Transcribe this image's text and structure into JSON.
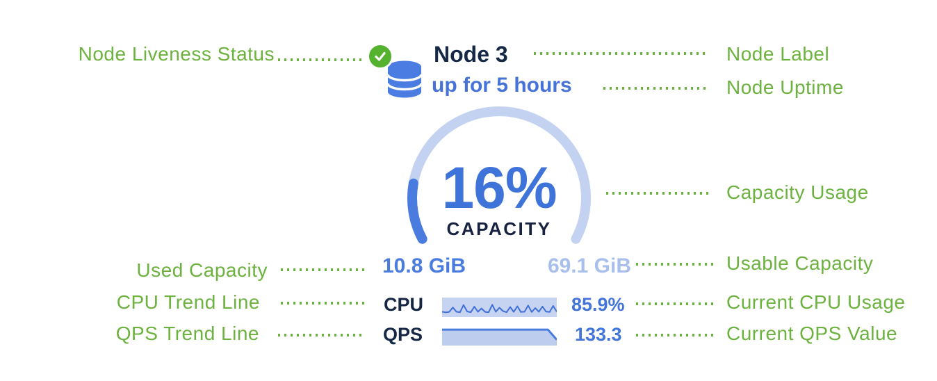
{
  "colors": {
    "annotation_green": "#6cb23e",
    "liveness_green": "#54b22f",
    "navy": "#152947",
    "blue": "#4274d9",
    "light_blue": "#a8bfec",
    "gauge_track": "#c3d2f0",
    "gauge_fill": "#4a7ce0",
    "spark_bg": "#c6d4f1",
    "db_icon_blue": "#4a7ce2"
  },
  "annotations": {
    "left": [
      {
        "label": "Node Liveness Status"
      },
      {
        "label": "Used Capacity"
      },
      {
        "label": "CPU Trend Line"
      },
      {
        "label": "QPS Trend Line"
      }
    ],
    "right": [
      {
        "label": "Node Label"
      },
      {
        "label": "Node Uptime"
      },
      {
        "label": "Capacity Usage"
      },
      {
        "label": "Usable Capacity"
      },
      {
        "label": "Current CPU Usage"
      },
      {
        "label": "Current QPS Value"
      }
    ]
  },
  "node": {
    "label": "Node 3",
    "uptime": "up for 5 hours",
    "capacity_percent_display": "16%",
    "capacity_caption": "CAPACITY",
    "used_capacity": "10.8 GiB",
    "usable_capacity": "69.1 GiB",
    "cpu_label": "CPU",
    "cpu_value": "85.9%",
    "qps_label": "QPS",
    "qps_value": "133.3"
  },
  "chart_data": [
    {
      "type": "gauge",
      "title": "CAPACITY",
      "value_pct": 16,
      "display": "16%",
      "used": "10.8 GiB",
      "usable": "69.1 GiB",
      "arc_degrees": 236,
      "track_color": "#c3d2f0",
      "fill_color": "#4a7ce0"
    },
    {
      "type": "line",
      "name": "CPU sparkline",
      "current": 85.9,
      "unit": "%",
      "ylim": [
        0,
        100
      ],
      "values": [
        30,
        26,
        29,
        58,
        30,
        27,
        74,
        32,
        27,
        63,
        30,
        52,
        29,
        27,
        76,
        30,
        57,
        34,
        27,
        61,
        29,
        66,
        28,
        30,
        71,
        28,
        54,
        30,
        64,
        31,
        28,
        68,
        30
      ]
    },
    {
      "type": "area",
      "name": "QPS sparkline",
      "current": 133.3,
      "ylim": [
        0,
        140
      ],
      "values": [
        133,
        133,
        133,
        133,
        133,
        133,
        133,
        133,
        133,
        133,
        133,
        133,
        133,
        40
      ]
    }
  ]
}
